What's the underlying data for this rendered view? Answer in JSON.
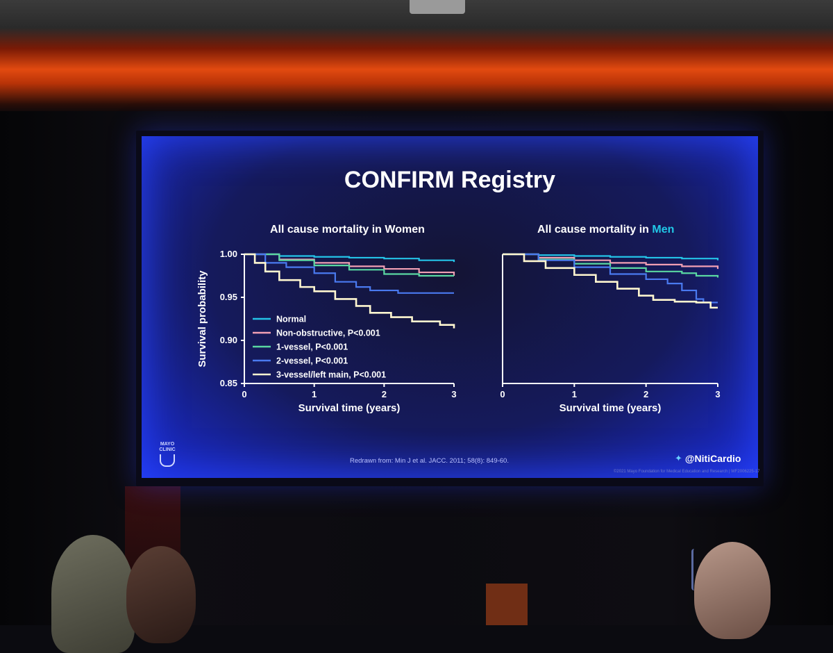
{
  "slide": {
    "title": "CONFIRM Registry",
    "citation": "Redrawn from: Min J et al. JACC. 2011; 58(8): 849-60.",
    "handle": "@NitiCardio",
    "logo_text": [
      "MAYO",
      "CLINIC"
    ],
    "copyright": "©2021 Mayo Foundation for Medical Education and Research | WF2006225-17"
  },
  "colors": {
    "normal": "#24c4e8",
    "non_obstructive": "#f2a0b4",
    "one_vessel": "#5ad8a2",
    "two_vessel": "#4a7af0",
    "three_vessel": "#fff7d0",
    "accent_men": "#21c8e6"
  },
  "chart_data": [
    {
      "type": "line",
      "title_prefix": "All cause mortality in ",
      "title_highlight": "Women",
      "title_highlight_color": "#ffffff",
      "xlabel": "Survival time (years)",
      "ylabel": "Survival probability",
      "xlim": [
        0,
        3
      ],
      "ylim": [
        0.85,
        1.0
      ],
      "x_ticks": [
        "0",
        "1",
        "2",
        "3"
      ],
      "y_ticks": [
        "0.85",
        "0.90",
        "0.95",
        "1.00"
      ],
      "legend": true,
      "series": [
        {
          "name": "Normal",
          "key": "normal",
          "points": [
            [
              0,
              1.0
            ],
            [
              0.5,
              0.998
            ],
            [
              1,
              0.997
            ],
            [
              1.5,
              0.996
            ],
            [
              2,
              0.995
            ],
            [
              2.5,
              0.993
            ],
            [
              3,
              0.991
            ]
          ]
        },
        {
          "name": "Non-obstructive, P<0.001",
          "key": "non_obstructive",
          "points": [
            [
              0,
              1.0
            ],
            [
              0.5,
              0.994
            ],
            [
              1,
              0.99
            ],
            [
              1.5,
              0.986
            ],
            [
              2,
              0.983
            ],
            [
              2.5,
              0.979
            ],
            [
              3,
              0.975
            ]
          ]
        },
        {
          "name": "1-vessel, P<0.001",
          "key": "one_vessel",
          "points": [
            [
              0,
              1.0
            ],
            [
              0.5,
              0.993
            ],
            [
              1,
              0.987
            ],
            [
              1.5,
              0.982
            ],
            [
              2,
              0.977
            ],
            [
              2.5,
              0.975
            ],
            [
              3,
              0.975
            ]
          ]
        },
        {
          "name": "2-vessel, P<0.001",
          "key": "two_vessel",
          "points": [
            [
              0,
              1.0
            ],
            [
              0.3,
              0.99
            ],
            [
              0.6,
              0.985
            ],
            [
              1,
              0.978
            ],
            [
              1.3,
              0.968
            ],
            [
              1.6,
              0.962
            ],
            [
              1.8,
              0.958
            ],
            [
              2.1,
              0.958
            ],
            [
              2.2,
              0.955
            ],
            [
              3,
              0.955
            ]
          ]
        },
        {
          "name": "3-vessel/left main, P<0.001",
          "key": "three_vessel",
          "points": [
            [
              0,
              1.0
            ],
            [
              0.15,
              0.99
            ],
            [
              0.3,
              0.98
            ],
            [
              0.5,
              0.97
            ],
            [
              0.8,
              0.962
            ],
            [
              1,
              0.957
            ],
            [
              1.3,
              0.948
            ],
            [
              1.6,
              0.94
            ],
            [
              1.8,
              0.932
            ],
            [
              2.1,
              0.927
            ],
            [
              2.4,
              0.922
            ],
            [
              2.8,
              0.918
            ],
            [
              3,
              0.914
            ]
          ]
        }
      ]
    },
    {
      "type": "line",
      "title_prefix": "All cause mortality in ",
      "title_highlight": "Men",
      "title_highlight_color": "#21c8e6",
      "xlabel": "Survival time (years)",
      "ylabel": "",
      "xlim": [
        0,
        3
      ],
      "ylim": [
        0.85,
        1.0
      ],
      "x_ticks": [
        "0",
        "1",
        "2",
        "3"
      ],
      "y_ticks": [],
      "legend": false,
      "series": [
        {
          "name": "Normal",
          "key": "normal",
          "points": [
            [
              0,
              1.0
            ],
            [
              0.5,
              0.999
            ],
            [
              1,
              0.998
            ],
            [
              1.5,
              0.997
            ],
            [
              2,
              0.996
            ],
            [
              2.5,
              0.995
            ],
            [
              3,
              0.993
            ]
          ]
        },
        {
          "name": "Non-obstructive, P<0.001",
          "key": "non_obstructive",
          "points": [
            [
              0,
              1.0
            ],
            [
              0.5,
              0.996
            ],
            [
              1,
              0.993
            ],
            [
              1.5,
              0.99
            ],
            [
              2,
              0.988
            ],
            [
              2.5,
              0.986
            ],
            [
              3,
              0.983
            ]
          ]
        },
        {
          "name": "1-vessel, P<0.001",
          "key": "one_vessel",
          "points": [
            [
              0,
              1.0
            ],
            [
              0.5,
              0.994
            ],
            [
              1,
              0.989
            ],
            [
              1.5,
              0.984
            ],
            [
              2,
              0.98
            ],
            [
              2.5,
              0.978
            ],
            [
              2.7,
              0.975
            ],
            [
              3,
              0.973
            ]
          ]
        },
        {
          "name": "2-vessel, P<0.001",
          "key": "two_vessel",
          "points": [
            [
              0,
              1.0
            ],
            [
              0.5,
              0.993
            ],
            [
              1,
              0.985
            ],
            [
              1.5,
              0.977
            ],
            [
              2,
              0.971
            ],
            [
              2.3,
              0.966
            ],
            [
              2.5,
              0.958
            ],
            [
              2.7,
              0.948
            ],
            [
              2.8,
              0.944
            ],
            [
              3,
              0.944
            ]
          ]
        },
        {
          "name": "3-vessel/left main, P<0.001",
          "key": "three_vessel",
          "points": [
            [
              0,
              1.0
            ],
            [
              0.3,
              0.992
            ],
            [
              0.6,
              0.984
            ],
            [
              1,
              0.976
            ],
            [
              1.3,
              0.968
            ],
            [
              1.6,
              0.96
            ],
            [
              1.9,
              0.952
            ],
            [
              2.1,
              0.947
            ],
            [
              2.4,
              0.945
            ],
            [
              2.7,
              0.944
            ],
            [
              2.9,
              0.938
            ],
            [
              3,
              0.938
            ]
          ]
        }
      ]
    }
  ]
}
